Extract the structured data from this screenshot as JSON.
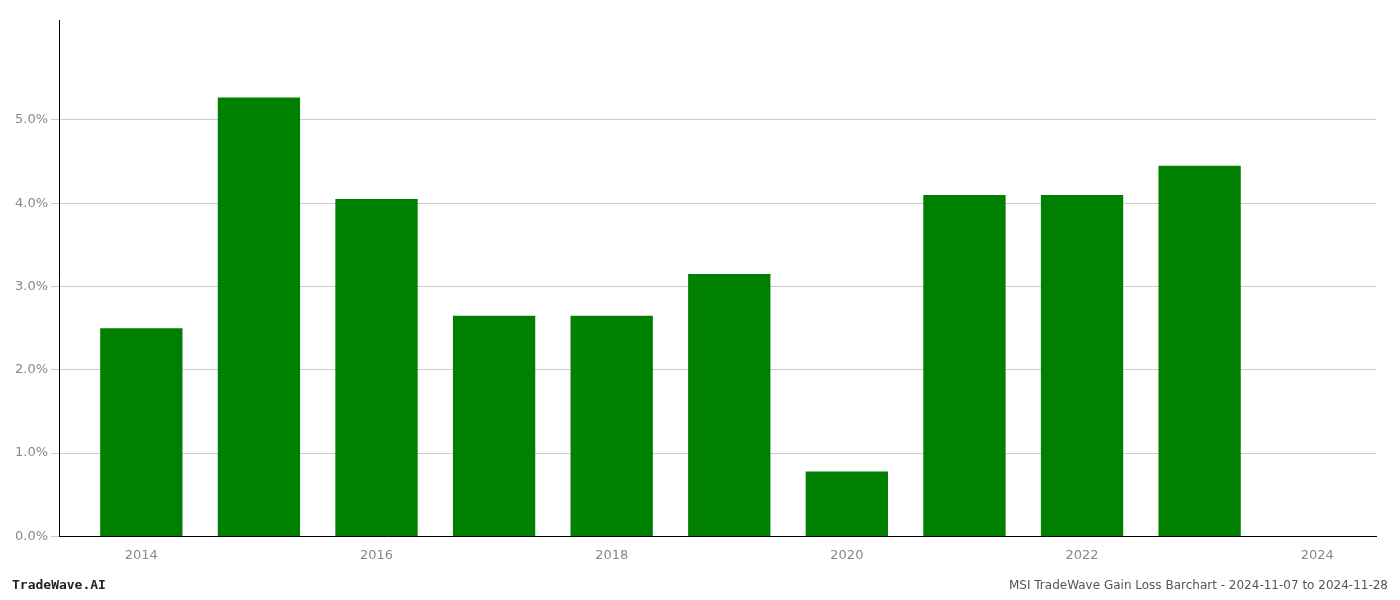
{
  "chart_data": {
    "type": "bar",
    "title": "MSI TradeWave Gain Loss Barchart - 2024-11-07 to 2024-11-28",
    "annotations": [
      "TradeWave.AI"
    ],
    "x": [
      2014,
      2015,
      2016,
      2017,
      2018,
      2019,
      2020,
      2021,
      2022,
      2023
    ],
    "values": [
      0.025,
      0.0527,
      0.0405,
      0.0265,
      0.0265,
      0.0315,
      0.0078,
      0.041,
      0.041,
      0.0445
    ],
    "color": "#008000",
    "xlim": [
      2013.3,
      2024.5
    ],
    "xticks": [
      2014,
      2016,
      2018,
      2020,
      2022,
      2024
    ],
    "ylim": [
      0,
      0.062
    ],
    "yticks": [
      {
        "value": 0.0,
        "label": "0.0%"
      },
      {
        "value": 0.01,
        "label": "1.0%"
      },
      {
        "value": 0.02,
        "label": "2.0%"
      },
      {
        "value": 0.03,
        "label": "3.0%"
      },
      {
        "value": 0.04,
        "label": "4.0%"
      },
      {
        "value": 0.05,
        "label": "5.0%"
      }
    ],
    "grid": true
  }
}
